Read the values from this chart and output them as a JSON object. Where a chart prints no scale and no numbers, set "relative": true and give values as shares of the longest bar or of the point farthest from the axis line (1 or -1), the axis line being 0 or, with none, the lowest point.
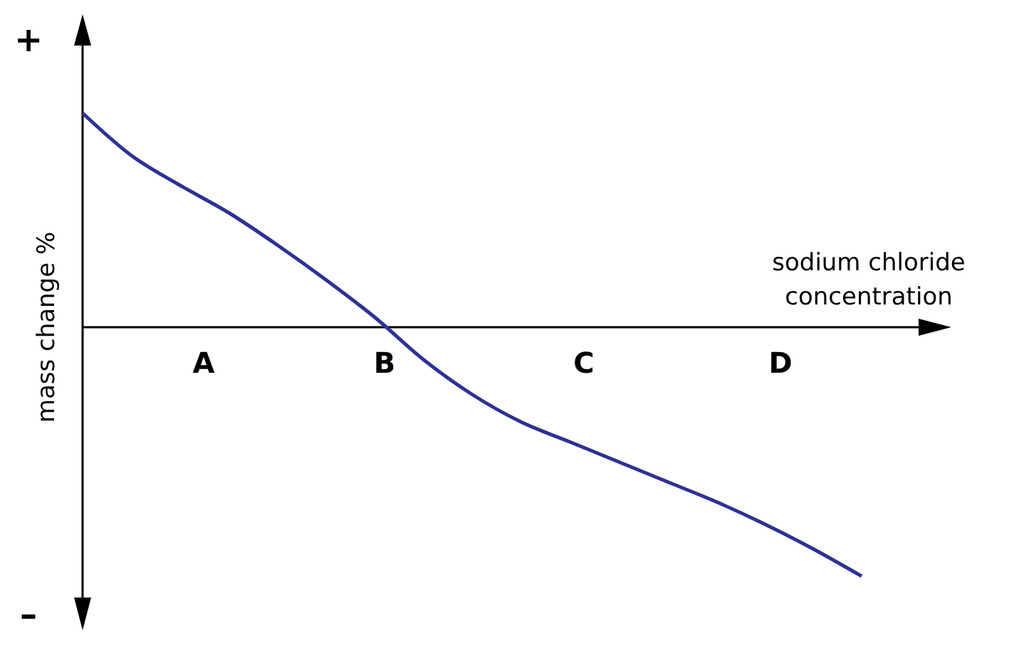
{
  "chart_data": {
    "type": "line",
    "relative": true,
    "xlabel": "sodium chloride\nconcentration",
    "ylabel": "mass change %",
    "categories": [
      null,
      null,
      null,
      null,
      null,
      null,
      null,
      null,
      null,
      null,
      null,
      null,
      null,
      null,
      null,
      null,
      null
    ],
    "series": [
      {
        "color": "#2e3192",
        "values": [
          0.86,
          0.69,
          0.57,
          0.46,
          0.33,
          0.19,
          0.04,
          -0.13,
          -0.27,
          -0.38,
          -0.46,
          -0.54,
          -0.62,
          -0.7,
          -0.79,
          -0.89,
          -1
        ]
      }
    ],
    "annotations": [
      "+",
      "–",
      "A",
      "B",
      "C",
      "D"
    ],
    "grid": false,
    "marker": "none",
    "line_style": "solid"
  }
}
